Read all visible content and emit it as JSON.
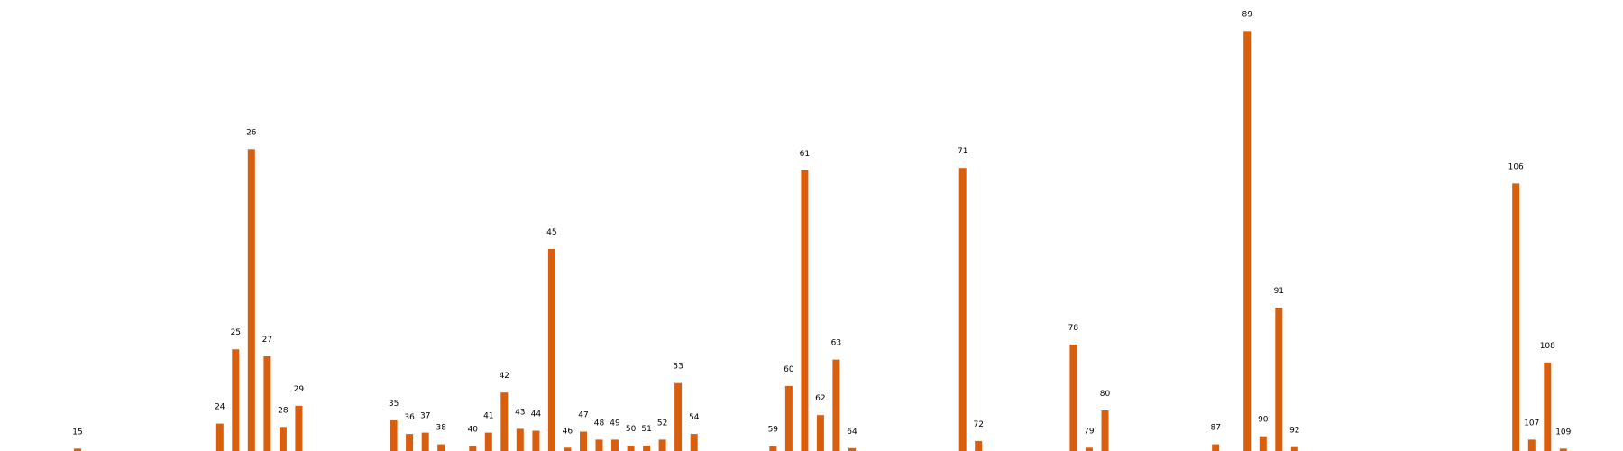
{
  "chart_data": {
    "type": "bar",
    "title": "",
    "xlabel": "",
    "ylabel": "",
    "grid": false,
    "legend": "none",
    "bar_color": "#d95f0e",
    "x": [
      15,
      24,
      25,
      26,
      27,
      28,
      29,
      35,
      36,
      37,
      38,
      40,
      41,
      42,
      43,
      44,
      45,
      46,
      47,
      48,
      49,
      50,
      51,
      52,
      53,
      54,
      59,
      60,
      61,
      62,
      63,
      64,
      71,
      72,
      78,
      79,
      80,
      87,
      89,
      90,
      91,
      92,
      106,
      107,
      108,
      109
    ],
    "values": [
      0.9,
      6.2,
      22,
      64.5,
      20.5,
      5.5,
      10,
      6.9,
      4,
      4.3,
      1.8,
      1.4,
      4.3,
      12.8,
      5.1,
      4.7,
      43.3,
      1.1,
      4.5,
      2.8,
      2.8,
      1.5,
      1.5,
      2.8,
      14.8,
      4,
      1.4,
      14.2,
      60,
      8,
      19.8,
      1,
      60.5,
      2.5,
      23,
      1.1,
      9,
      1.8,
      89.6,
      3.5,
      30.8,
      1.2,
      57.2,
      2.8,
      19.2,
      0.9
    ],
    "xlim": [
      10,
      112
    ],
    "ylim": [
      0,
      94
    ]
  }
}
